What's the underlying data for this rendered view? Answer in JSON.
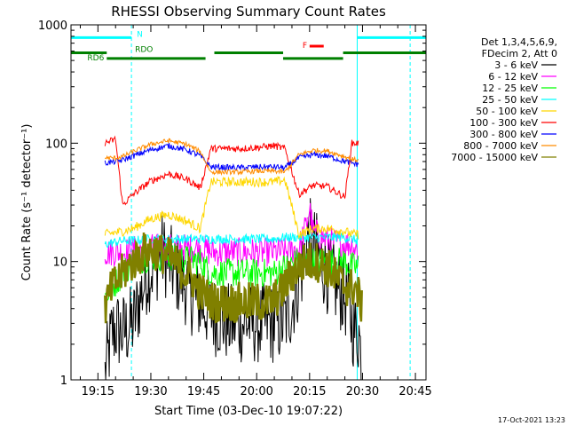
{
  "chart_data": {
    "type": "line",
    "title": "RHESSI Observing Summary Count Rates",
    "xlabel": "Start Time (03-Dec-10 19:07:22)",
    "ylabel": "Count Rate (s⁻¹ detector⁻¹)",
    "xlim": [
      "19:07:22",
      "20:48:00"
    ],
    "ylim": [
      1,
      1000
    ],
    "yscale": "log",
    "x_ticks": [
      "19:15",
      "19:30",
      "19:45",
      "20:00",
      "20:15",
      "20:30",
      "20:45"
    ],
    "y_ticks": [
      "1",
      "10",
      "100",
      "1000"
    ],
    "grid": false,
    "legend_position": "right",
    "legend_header": [
      "Det 1,3,4,5,6,9,",
      "FDecim 2, Att 0"
    ],
    "series": [
      {
        "name": "3 - 6 keV",
        "color": "#000000",
        "x": [
          "19:17",
          "19:19",
          "19:20",
          "19:22",
          "19:25",
          "19:27",
          "19:29",
          "19:31",
          "19:33",
          "19:35",
          "19:37",
          "19:39",
          "19:42",
          "19:44",
          "19:46",
          "19:48",
          "19:52",
          "19:56",
          "20:00",
          "20:04",
          "20:07",
          "20:09",
          "20:11",
          "20:13",
          "20:14",
          "20:15",
          "20:17",
          "20:20",
          "20:23",
          "20:26",
          "20:27",
          "20:28",
          "20:29",
          "20:30"
        ],
        "y": [
          1.1,
          2.5,
          2.7,
          2.5,
          3,
          5,
          8,
          9,
          12,
          10,
          8,
          7,
          5,
          4.5,
          4,
          3.5,
          3,
          3,
          3,
          3,
          3,
          3.5,
          5.5,
          9,
          14,
          16,
          12,
          8,
          6,
          4.5,
          3,
          2.5,
          2.5,
          1.1
        ]
      },
      {
        "name": "6 - 12 keV",
        "color": "#ff00ff",
        "x": [
          "19:17",
          "19:22",
          "19:25",
          "19:30",
          "19:35",
          "19:40",
          "19:44",
          "19:47",
          "19:55",
          "20:00",
          "20:05",
          "20:08",
          "20:12",
          "20:14",
          "20:15",
          "20:16",
          "20:20",
          "20:25",
          "20:27",
          "20:29"
        ],
        "y": [
          12,
          12,
          12.5,
          13,
          13,
          13,
          13,
          12,
          12,
          12,
          12,
          12,
          13,
          20,
          28,
          18,
          15,
          14,
          14,
          12
        ]
      },
      {
        "name": "12 - 25 keV",
        "color": "#00ff00",
        "x": [
          "19:17",
          "19:22",
          "19:25",
          "19:30",
          "19:35",
          "19:40",
          "19:44",
          "19:47",
          "19:55",
          "20:00",
          "20:05",
          "20:08",
          "20:12",
          "20:16",
          "20:20",
          "20:25",
          "20:27",
          "20:29"
        ],
        "y": [
          5,
          8,
          10,
          11,
          11,
          10.5,
          10,
          8,
          8,
          8,
          8,
          9,
          10,
          10,
          10,
          10,
          9,
          9
        ]
      },
      {
        "name": "25 - 50 keV",
        "color": "#00ffff",
        "x": [
          "19:17",
          "19:22",
          "19:25",
          "19:30",
          "19:35",
          "19:40",
          "19:44",
          "19:47",
          "19:55",
          "20:00",
          "20:05",
          "20:08",
          "20:12",
          "20:16",
          "20:20",
          "20:25",
          "20:27",
          "20:29"
        ],
        "y": [
          14,
          15,
          15,
          15.5,
          15.5,
          15.5,
          15.5,
          15.5,
          15.5,
          15.5,
          15.5,
          16,
          16,
          16,
          16,
          16,
          15.5,
          15
        ]
      },
      {
        "name": "50 - 100 keV",
        "color": "#ffd700",
        "x": [
          "19:17",
          "19:22",
          "19:25",
          "19:30",
          "19:35",
          "19:40",
          "19:44",
          "19:47",
          "19:55",
          "20:00",
          "20:05",
          "20:08",
          "20:12",
          "20:16",
          "20:20",
          "20:25",
          "20:27",
          "20:29"
        ],
        "y": [
          17,
          18,
          19,
          23,
          25,
          22,
          19,
          47,
          47,
          47,
          47,
          49,
          17,
          19,
          19,
          18,
          17,
          17
        ]
      },
      {
        "name": "100 - 300 keV",
        "color": "#ff0000",
        "x": [
          "19:17",
          "19:20",
          "19:22",
          "19:25",
          "19:30",
          "19:35",
          "19:40",
          "19:44",
          "19:47",
          "19:55",
          "20:00",
          "20:05",
          "20:08",
          "20:12",
          "20:16",
          "20:20",
          "20:25",
          "20:27",
          "20:29"
        ],
        "y": [
          100,
          108,
          30,
          37,
          48,
          55,
          50,
          42,
          90,
          90,
          92,
          95,
          90,
          37,
          44,
          43,
          35,
          100,
          100
        ]
      },
      {
        "name": "300 - 800 keV",
        "color": "#0000ff",
        "x": [
          "19:17",
          "19:20",
          "19:22",
          "19:25",
          "19:30",
          "19:35",
          "19:40",
          "19:44",
          "19:47",
          "19:55",
          "20:00",
          "20:05",
          "20:08",
          "20:12",
          "20:16",
          "20:20",
          "20:25",
          "20:27",
          "20:29"
        ],
        "y": [
          68,
          70,
          72,
          78,
          88,
          95,
          88,
          78,
          63,
          62,
          63,
          63,
          62,
          75,
          80,
          78,
          70,
          68,
          66
        ]
      },
      {
        "name": "800 - 7000 keV",
        "color": "#ff8c00",
        "x": [
          "19:17",
          "19:20",
          "19:22",
          "19:25",
          "19:30",
          "19:35",
          "19:40",
          "19:44",
          "19:47",
          "19:55",
          "20:00",
          "20:05",
          "20:08",
          "20:12",
          "20:16",
          "20:20",
          "20:25",
          "20:27",
          "20:29"
        ],
        "y": [
          75,
          75,
          77,
          85,
          98,
          105,
          98,
          85,
          57,
          57,
          58,
          58,
          57,
          80,
          87,
          86,
          77,
          73,
          72
        ]
      },
      {
        "name": "7000 - 15000 keV",
        "color": "#808000",
        "x": [
          "19:17",
          "19:19",
          "19:22",
          "19:25",
          "19:28",
          "19:31",
          "19:35",
          "19:38",
          "19:42",
          "19:44",
          "19:46",
          "19:48",
          "19:52",
          "19:56",
          "20:00",
          "20:04",
          "20:07",
          "20:09",
          "20:11",
          "20:14",
          "20:17",
          "20:20",
          "20:23",
          "20:26",
          "20:28",
          "20:29",
          "20:30"
        ],
        "y": [
          4,
          6,
          8,
          10,
          12,
          12.5,
          11,
          9,
          7,
          5.5,
          5,
          4.5,
          4.5,
          4.5,
          4.5,
          4.5,
          5.5,
          7,
          8.5,
          10,
          10,
          9,
          7,
          6,
          6,
          5,
          4
        ]
      }
    ],
    "annotations": {
      "night_marker": "N",
      "rdo_marker": "RDO",
      "rd6_marker": "RD6",
      "flare_marker": "F"
    },
    "footer_date": "17-Oct-2021 13:23"
  }
}
